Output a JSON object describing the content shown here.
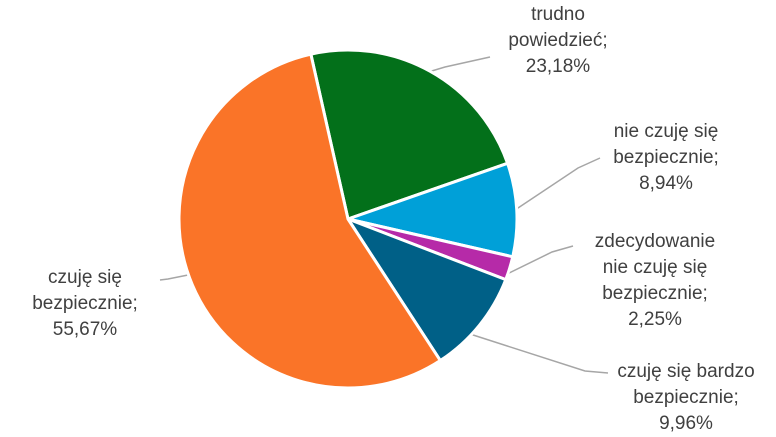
{
  "chart_data": {
    "type": "pie",
    "title": "",
    "slices": [
      {
        "label_lines": [
          "trudno",
          "powiedzieć;",
          "23,18%"
        ],
        "name": "trudno powiedzieć",
        "value": 23.18,
        "value_text": "23,18%",
        "color": "#03701A"
      },
      {
        "label_lines": [
          "nie czuję się",
          "bezpiecznie;",
          "8,94%"
        ],
        "name": "nie czuję się bezpiecznie",
        "value": 8.94,
        "value_text": "8,94%",
        "color": "#00A0D8"
      },
      {
        "label_lines": [
          "zdecydowanie",
          "nie czuję się",
          "bezpiecznie;",
          "2,25%"
        ],
        "name": "zdecydowanie nie czuję się bezpiecznie",
        "value": 2.25,
        "value_text": "2,25%",
        "color": "#B62AA8"
      },
      {
        "label_lines": [
          "czuję się bardzo",
          "bezpiecznie;",
          "9,96%"
        ],
        "name": "czuję się bardzo bezpiecznie",
        "value": 9.96,
        "value_text": "9,96%",
        "color": "#006087"
      },
      {
        "label_lines": [
          "czuję się",
          "bezpiecznie;",
          "55,67%"
        ],
        "name": "czuję się bezpiecznie",
        "value": 55.67,
        "value_text": "55,67%",
        "color": "#FA7428"
      }
    ],
    "legend": "none",
    "leader_line_color": "#A6A6A6",
    "label_color": "#404040"
  }
}
